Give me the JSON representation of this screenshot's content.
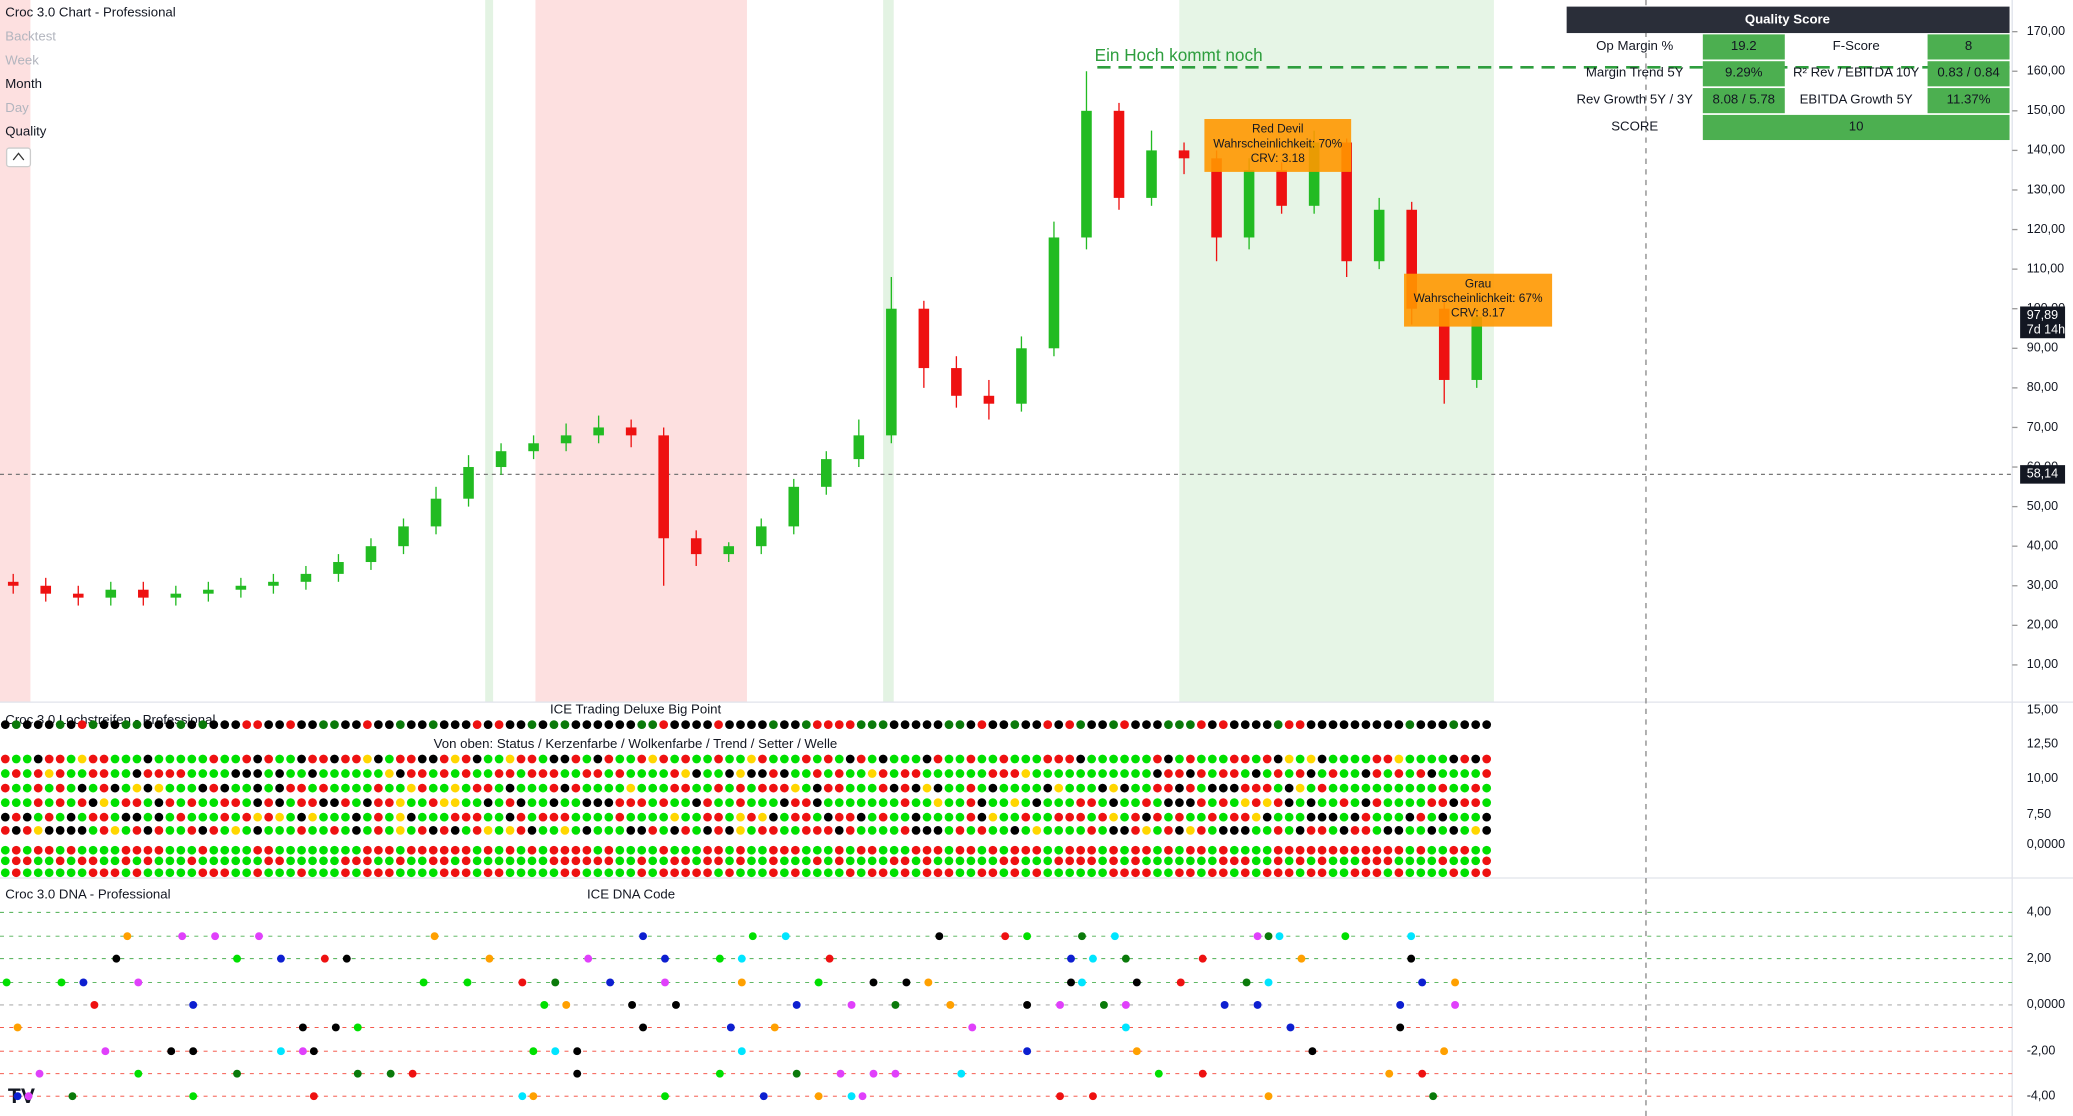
{
  "legend": {
    "title": "Croc 3.0 Chart - Professional",
    "items": [
      "Backtest",
      "Week",
      "Month",
      "Day",
      "Quality"
    ]
  },
  "chart_data": {
    "type": "candlestick",
    "open": [
      31,
      30,
      28,
      27,
      29,
      27,
      28,
      29,
      30,
      31,
      33,
      36,
      40,
      45,
      52,
      60,
      64,
      66,
      68,
      70,
      68,
      42,
      38,
      40,
      45,
      55,
      62,
      68,
      100,
      85,
      78,
      76,
      90,
      118,
      150,
      128,
      140,
      138,
      118,
      135,
      126,
      142,
      112,
      125,
      100,
      82
    ],
    "high": [
      33,
      32,
      30,
      31,
      31,
      30,
      31,
      32,
      33,
      35,
      38,
      42,
      47,
      55,
      63,
      66,
      68,
      71,
      73,
      72,
      70,
      44,
      41,
      47,
      57,
      64,
      72,
      108,
      102,
      88,
      82,
      93,
      122,
      160,
      152,
      145,
      142,
      140,
      138,
      137,
      145,
      143,
      128,
      127,
      102,
      100
    ],
    "low": [
      28,
      26,
      25,
      25,
      25,
      25,
      26,
      27,
      28,
      29,
      31,
      34,
      38,
      43,
      50,
      58,
      62,
      64,
      66,
      65,
      30,
      35,
      36,
      38,
      43,
      53,
      60,
      66,
      80,
      75,
      72,
      74,
      88,
      115,
      125,
      126,
      134,
      112,
      115,
      124,
      124,
      108,
      110,
      96,
      76,
      80
    ],
    "close": [
      30,
      28,
      27,
      29,
      27,
      28,
      29,
      30,
      31,
      33,
      36,
      40,
      45,
      52,
      60,
      64,
      66,
      68,
      70,
      68,
      42,
      38,
      40,
      45,
      55,
      62,
      68,
      100,
      85,
      78,
      76,
      90,
      118,
      150,
      128,
      140,
      138,
      118,
      135,
      126,
      142,
      112,
      125,
      100,
      82,
      98
    ],
    "up_color": "#22bb22",
    "down_color": "#ee1111",
    "ylim": [
      0.6,
      178
    ],
    "yticks": [
      {
        "value": 10,
        "label": "10,00"
      },
      {
        "value": 20,
        "label": "20,00"
      },
      {
        "value": 30,
        "label": "30,00"
      },
      {
        "value": 40,
        "label": "40,00"
      },
      {
        "value": 50,
        "label": "50,00"
      },
      {
        "value": 60,
        "label": "60,00"
      },
      {
        "value": 70,
        "label": "70,00"
      },
      {
        "value": 80,
        "label": "80,00"
      },
      {
        "value": 90,
        "label": "90,00"
      },
      {
        "value": 100,
        "label": "100,00"
      },
      {
        "value": 110,
        "label": "110,00"
      },
      {
        "value": 120,
        "label": "120,00"
      },
      {
        "value": 130,
        "label": "130,00"
      },
      {
        "value": 140,
        "label": "140,00"
      },
      {
        "value": 150,
        "label": "150,00"
      },
      {
        "value": 160,
        "label": "160,00"
      },
      {
        "value": 170,
        "label": "170,00"
      }
    ],
    "target": {
      "value": 161,
      "label": "Ein Hoch kommt noch"
    },
    "price_line": {
      "value": 58.14,
      "label": "58,14"
    },
    "last_price": {
      "value": 97.89,
      "label": "97,89"
    },
    "countdown": "7d 14h",
    "annotations": [
      [
        "Red Devil",
        "Wahrscheinlichkeit: 70%",
        "CRV: 3.18"
      ],
      [
        "Grau",
        "Wahrscheinlichkeit: 67%",
        "CRV: 8.17"
      ]
    ]
  },
  "quality_score": {
    "title": "Quality Score",
    "rows": [
      [
        "Op Margin %",
        "19.2",
        "F-Score",
        "8"
      ],
      [
        "Margin Trend 5Y",
        "9.29%",
        "R² Rev / EBITDA 10Y",
        "0.83 / 0.84"
      ],
      [
        "Rev Growth 5Y / 3Y",
        "8.08 / 5.78",
        "EBITDA Growth 5Y",
        "11.37%"
      ],
      [
        "SCORE",
        "10"
      ]
    ]
  },
  "panels": [
    {
      "title": "Croc 3.0 Lochstreifen - Professional",
      "subtitle": "ICE Trading Deluxe Big Point",
      "caption": "Von oben: Status / Kerzenfarbe / Wolkenfarbe / Trend / Setter / Welle",
      "ticks": [
        "15,00",
        "12,50",
        "10,00",
        "7,50",
        "0,0000"
      ]
    },
    {
      "title": "Croc 3.0 DNA - Professional",
      "subtitle": "ICE DNA Code",
      "ticks": [
        "4,00",
        "2,00",
        "0,0000",
        "-2,00",
        "-4,00"
      ]
    }
  ]
}
